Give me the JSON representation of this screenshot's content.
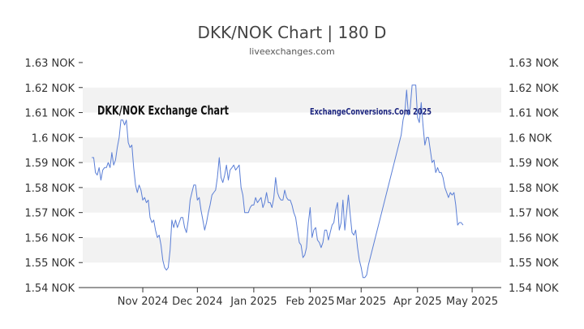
{
  "chart_data": {
    "type": "line",
    "title": "DKK/NOK Chart | 180 D",
    "subtitle": "liveexchanges.com",
    "annotations": [
      "DKK/NOK Exchange Chart",
      "ExchangeConversions.Com 2025"
    ],
    "y_ticks": [
      "1.63 NOK",
      "1.62 NOK",
      "1.61 NOK",
      "1.6 NOK",
      "1.59 NOK",
      "1.58 NOK",
      "1.57 NOK",
      "1.56 NOK",
      "1.55 NOK",
      "1.54 NOK"
    ],
    "ylim": [
      1.54,
      1.63
    ],
    "grid": "alternating-bands",
    "axes": "left-and-right",
    "x_ticks": [
      {
        "label": "Nov 2024",
        "day": 33
      },
      {
        "label": "Dec 2024",
        "day": 63
      },
      {
        "label": "Jan 2025",
        "day": 94
      },
      {
        "label": "Feb 2025",
        "day": 125
      },
      {
        "label": "Mar 2025",
        "day": 153
      },
      {
        "label": "Apr 2025",
        "day": 184
      },
      {
        "label": "May 2025",
        "day": 214
      }
    ],
    "xlim": [
      0,
      230
    ],
    "colors": {
      "line": "#5b7fd6",
      "band": "#f2f2f2",
      "axis": "#333333"
    },
    "series": [
      {
        "values": [
          [
            5,
            1.592
          ],
          [
            6,
            1.592
          ],
          [
            7,
            1.586
          ],
          [
            8,
            1.585
          ],
          [
            9,
            1.588
          ],
          [
            10,
            1.583
          ],
          [
            11,
            1.587
          ],
          [
            12,
            1.588
          ],
          [
            13,
            1.588
          ],
          [
            14,
            1.59
          ],
          [
            15,
            1.588
          ],
          [
            16,
            1.594
          ],
          [
            17,
            1.589
          ],
          [
            18,
            1.591
          ],
          [
            19,
            1.596
          ],
          [
            20,
            1.6
          ],
          [
            21,
            1.607
          ],
          [
            22,
            1.607
          ],
          [
            23,
            1.605
          ],
          [
            24,
            1.607
          ],
          [
            25,
            1.598
          ],
          [
            26,
            1.596
          ],
          [
            27,
            1.597
          ],
          [
            28,
            1.588
          ],
          [
            29,
            1.581
          ],
          [
            30,
            1.578
          ],
          [
            31,
            1.581
          ],
          [
            32,
            1.579
          ],
          [
            33,
            1.575
          ],
          [
            34,
            1.576
          ],
          [
            35,
            1.574
          ],
          [
            36,
            1.575
          ],
          [
            37,
            1.568
          ],
          [
            38,
            1.566
          ],
          [
            39,
            1.567
          ],
          [
            40,
            1.563
          ],
          [
            41,
            1.56
          ],
          [
            42,
            1.561
          ],
          [
            43,
            1.557
          ],
          [
            44,
            1.551
          ],
          [
            45,
            1.548
          ],
          [
            46,
            1.547
          ],
          [
            47,
            1.548
          ],
          [
            48,
            1.555
          ],
          [
            49,
            1.567
          ],
          [
            50,
            1.564
          ],
          [
            51,
            1.567
          ],
          [
            52,
            1.564
          ],
          [
            53,
            1.566
          ],
          [
            54,
            1.568
          ],
          [
            55,
            1.568
          ],
          [
            56,
            1.564
          ],
          [
            57,
            1.562
          ],
          [
            58,
            1.567
          ],
          [
            59,
            1.575
          ],
          [
            60,
            1.578
          ],
          [
            61,
            1.581
          ],
          [
            62,
            1.581
          ],
          [
            63,
            1.575
          ],
          [
            64,
            1.576
          ],
          [
            65,
            1.571
          ],
          [
            66,
            1.567
          ],
          [
            67,
            1.563
          ],
          [
            68,
            1.566
          ],
          [
            69,
            1.57
          ],
          [
            70,
            1.573
          ],
          [
            71,
            1.577
          ],
          [
            72,
            1.578
          ],
          [
            73,
            1.579
          ],
          [
            74,
            1.584
          ],
          [
            75,
            1.592
          ],
          [
            76,
            1.584
          ],
          [
            77,
            1.582
          ],
          [
            78,
            1.585
          ],
          [
            79,
            1.589
          ],
          [
            80,
            1.583
          ],
          [
            81,
            1.587
          ],
          [
            82,
            1.588
          ],
          [
            83,
            1.589
          ],
          [
            84,
            1.587
          ],
          [
            85,
            1.588
          ],
          [
            86,
            1.589
          ],
          [
            87,
            1.58
          ],
          [
            88,
            1.577
          ],
          [
            89,
            1.57
          ],
          [
            90,
            1.57
          ],
          [
            91,
            1.57
          ],
          [
            92,
            1.572
          ],
          [
            93,
            1.573
          ],
          [
            94,
            1.573
          ],
          [
            95,
            1.576
          ],
          [
            96,
            1.574
          ],
          [
            97,
            1.575
          ],
          [
            98,
            1.576
          ],
          [
            99,
            1.572
          ],
          [
            100,
            1.574
          ],
          [
            101,
            1.578
          ],
          [
            102,
            1.574
          ],
          [
            103,
            1.574
          ],
          [
            104,
            1.572
          ],
          [
            105,
            1.576
          ],
          [
            106,
            1.584
          ],
          [
            107,
            1.578
          ],
          [
            108,
            1.576
          ],
          [
            109,
            1.575
          ],
          [
            110,
            1.575
          ],
          [
            111,
            1.579
          ],
          [
            112,
            1.576
          ],
          [
            113,
            1.575
          ],
          [
            114,
            1.575
          ],
          [
            115,
            1.573
          ],
          [
            116,
            1.57
          ],
          [
            117,
            1.568
          ],
          [
            118,
            1.563
          ],
          [
            119,
            1.558
          ],
          [
            120,
            1.557
          ],
          [
            121,
            1.552
          ],
          [
            122,
            1.553
          ],
          [
            123,
            1.556
          ],
          [
            124,
            1.566
          ],
          [
            125,
            1.572
          ],
          [
            126,
            1.56
          ],
          [
            127,
            1.563
          ],
          [
            128,
            1.564
          ],
          [
            129,
            1.559
          ],
          [
            130,
            1.558
          ],
          [
            131,
            1.556
          ],
          [
            132,
            1.558
          ],
          [
            133,
            1.563
          ],
          [
            134,
            1.563
          ],
          [
            135,
            1.559
          ],
          [
            136,
            1.562
          ],
          [
            137,
            1.565
          ],
          [
            138,
            1.566
          ],
          [
            139,
            1.571
          ],
          [
            140,
            1.574
          ],
          [
            141,
            1.563
          ],
          [
            142,
            1.566
          ],
          [
            143,
            1.575
          ],
          [
            144,
            1.563
          ],
          [
            145,
            1.57
          ],
          [
            146,
            1.577
          ],
          [
            147,
            1.569
          ],
          [
            148,
            1.562
          ],
          [
            149,
            1.561
          ],
          [
            150,
            1.563
          ],
          [
            151,
            1.556
          ],
          [
            152,
            1.551
          ],
          [
            153,
            1.548
          ],
          [
            154,
            1.544
          ],
          [
            155,
            1.544
          ],
          [
            156,
            1.545
          ],
          [
            157,
            1.549
          ],
          [
            175,
            1.601
          ],
          [
            176,
            1.607
          ],
          [
            177,
            1.61
          ],
          [
            178,
            1.619
          ],
          [
            179,
            1.609
          ],
          [
            180,
            1.612
          ],
          [
            181,
            1.621
          ],
          [
            182,
            1.621
          ],
          [
            183,
            1.621
          ],
          [
            184,
            1.608
          ],
          [
            185,
            1.606
          ],
          [
            186,
            1.614
          ],
          [
            187,
            1.605
          ],
          [
            188,
            1.597
          ],
          [
            189,
            1.6
          ],
          [
            190,
            1.6
          ],
          [
            191,
            1.595
          ],
          [
            192,
            1.59
          ],
          [
            193,
            1.591
          ],
          [
            194,
            1.586
          ],
          [
            195,
            1.588
          ],
          [
            196,
            1.586
          ],
          [
            197,
            1.586
          ],
          [
            198,
            1.584
          ],
          [
            199,
            1.58
          ],
          [
            200,
            1.578
          ],
          [
            201,
            1.576
          ],
          [
            202,
            1.578
          ],
          [
            203,
            1.577
          ],
          [
            204,
            1.578
          ],
          [
            205,
            1.573
          ],
          [
            206,
            1.565
          ],
          [
            207,
            1.566
          ],
          [
            208,
            1.566
          ],
          [
            209,
            1.565
          ]
        ]
      }
    ]
  }
}
